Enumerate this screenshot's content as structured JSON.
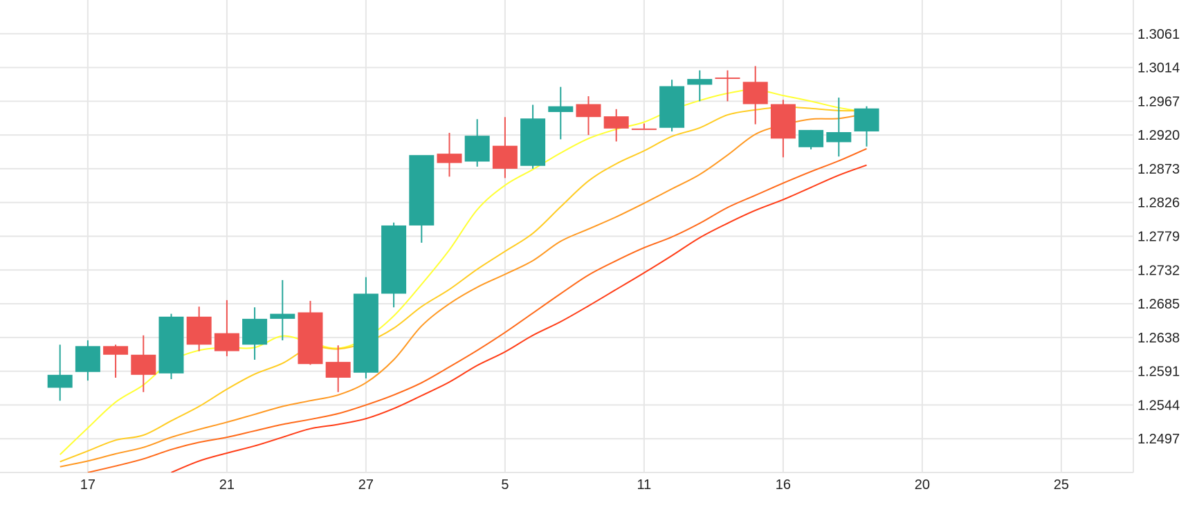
{
  "chart_data": {
    "type": "candlestick",
    "title": "",
    "xlabel": "",
    "ylabel": "",
    "grid": true,
    "ylim": [
      1.245,
      1.3108
    ],
    "colors": {
      "up": "#26a69a",
      "down": "#ef5350",
      "grid": "#e6e6e6",
      "ma": [
        "#ffff33",
        "#ffcc22",
        "#ff9922",
        "#ff6a1a",
        "#ff3d17"
      ]
    },
    "x_ticks": [
      {
        "label": "17",
        "x": 2
      },
      {
        "label": "21",
        "x": 7
      },
      {
        "label": "27",
        "x": 12
      },
      {
        "label": "5",
        "x": 17
      },
      {
        "label": "11",
        "x": 22
      },
      {
        "label": "16",
        "x": 27
      },
      {
        "label": "20",
        "x": 32
      },
      {
        "label": "25",
        "x": 37
      }
    ],
    "y_ticks": [
      "1.2497",
      "1.2544",
      "1.2591",
      "1.2638",
      "1.2685",
      "1.2732",
      "1.2779",
      "1.2826",
      "1.2873",
      "1.2920",
      "1.2967",
      "1.3014",
      "1.3061"
    ],
    "candles": [
      {
        "x": 1,
        "o": 1.2568,
        "h": 1.2628,
        "l": 1.255,
        "c": 1.2586
      },
      {
        "x": 2,
        "o": 1.259,
        "h": 1.2634,
        "l": 1.2578,
        "c": 1.2626
      },
      {
        "x": 3,
        "o": 1.2626,
        "h": 1.2628,
        "l": 1.2582,
        "c": 1.2614
      },
      {
        "x": 4,
        "o": 1.2614,
        "h": 1.2641,
        "l": 1.2562,
        "c": 1.2586
      },
      {
        "x": 5,
        "o": 1.2588,
        "h": 1.2671,
        "l": 1.258,
        "c": 1.2667
      },
      {
        "x": 6,
        "o": 1.2667,
        "h": 1.2681,
        "l": 1.2619,
        "c": 1.2628
      },
      {
        "x": 7,
        "o": 1.2644,
        "h": 1.269,
        "l": 1.2612,
        "c": 1.2619
      },
      {
        "x": 8,
        "o": 1.2628,
        "h": 1.268,
        "l": 1.2607,
        "c": 1.2664
      },
      {
        "x": 9,
        "o": 1.2664,
        "h": 1.2718,
        "l": 1.2634,
        "c": 1.2671
      },
      {
        "x": 10,
        "o": 1.2673,
        "h": 1.2689,
        "l": 1.26,
        "c": 1.2601
      },
      {
        "x": 11,
        "o": 1.2604,
        "h": 1.2627,
        "l": 1.2562,
        "c": 1.2582
      },
      {
        "x": 12,
        "o": 1.2589,
        "h": 1.2722,
        "l": 1.2581,
        "c": 1.2699
      },
      {
        "x": 13,
        "o": 1.2699,
        "h": 1.2798,
        "l": 1.268,
        "c": 1.2794
      },
      {
        "x": 14,
        "o": 1.2794,
        "h": 1.2888,
        "l": 1.277,
        "c": 1.2892
      },
      {
        "x": 15,
        "o": 1.2894,
        "h": 1.2923,
        "l": 1.2862,
        "c": 1.2881
      },
      {
        "x": 16,
        "o": 1.2883,
        "h": 1.2942,
        "l": 1.2876,
        "c": 1.2919
      },
      {
        "x": 17,
        "o": 1.2905,
        "h": 1.2945,
        "l": 1.286,
        "c": 1.2873
      },
      {
        "x": 18,
        "o": 1.2877,
        "h": 1.2962,
        "l": 1.2873,
        "c": 1.2943
      },
      {
        "x": 19,
        "o": 1.2952,
        "h": 1.2987,
        "l": 1.2914,
        "c": 1.296
      },
      {
        "x": 20,
        "o": 1.2963,
        "h": 1.2974,
        "l": 1.292,
        "c": 1.2945
      },
      {
        "x": 21,
        "o": 1.2946,
        "h": 1.2956,
        "l": 1.2911,
        "c": 1.2929
      },
      {
        "x": 22,
        "o": 1.2929,
        "h": 1.2936,
        "l": 1.2929,
        "c": 1.2928
      },
      {
        "x": 23,
        "o": 1.293,
        "h": 1.2997,
        "l": 1.2925,
        "c": 1.2988
      },
      {
        "x": 24,
        "o": 1.299,
        "h": 1.301,
        "l": 1.2967,
        "c": 1.2998
      },
      {
        "x": 25,
        "o": 1.3,
        "h": 1.301,
        "l": 1.2967,
        "c": 1.2999
      },
      {
        "x": 26,
        "o": 1.2994,
        "h": 1.3016,
        "l": 1.2935,
        "c": 1.2963
      },
      {
        "x": 27,
        "o": 1.2963,
        "h": 1.2969,
        "l": 1.2889,
        "c": 1.2915
      },
      {
        "x": 28,
        "o": 1.2903,
        "h": 1.2927,
        "l": 1.29,
        "c": 1.2927
      },
      {
        "x": 29,
        "o": 1.291,
        "h": 1.2972,
        "l": 1.289,
        "c": 1.2924
      },
      {
        "x": 30,
        "o": 1.2925,
        "h": 1.296,
        "l": 1.2904,
        "c": 1.2957
      }
    ],
    "series": [
      {
        "x": [
          1,
          2,
          3,
          4,
          5,
          6,
          7,
          8,
          9,
          10,
          11,
          12,
          13,
          14,
          15,
          16,
          17,
          18,
          19,
          20,
          21,
          22,
          23,
          24,
          25,
          26,
          27,
          28,
          29,
          30
        ],
        "values": [
          1.2475,
          1.2512,
          1.2548,
          1.2572,
          1.2605,
          1.262,
          1.2624,
          1.2624,
          1.264,
          1.2631,
          1.2623,
          1.2637,
          1.2668,
          1.2712,
          1.276,
          1.2816,
          1.285,
          1.2872,
          1.2895,
          1.2915,
          1.2928,
          1.2938,
          1.2955,
          1.2968,
          1.2978,
          1.2983,
          1.2975,
          1.2967,
          1.2958,
          1.2952
        ]
      },
      {
        "x": [
          1,
          2,
          3,
          4,
          5,
          6,
          7,
          8,
          9,
          10,
          11,
          12,
          13,
          14,
          15,
          16,
          17,
          18,
          19,
          20,
          21,
          22,
          23,
          24,
          25,
          26,
          27,
          28,
          29,
          30
        ],
        "values": [
          1.2465,
          1.248,
          1.2495,
          1.2502,
          1.2522,
          1.2542,
          1.2566,
          1.2587,
          1.2602,
          1.2624,
          1.2622,
          1.2631,
          1.2651,
          1.2681,
          1.2705,
          1.2733,
          1.2758,
          1.2783,
          1.282,
          1.2856,
          1.288,
          1.2898,
          1.2918,
          1.293,
          1.2948,
          1.2955,
          1.2959,
          1.2957,
          1.2954,
          1.2954
        ]
      },
      {
        "x": [
          1,
          2,
          3,
          4,
          5,
          6,
          7,
          8,
          9,
          10,
          11,
          12,
          13,
          14,
          15,
          16,
          17,
          18,
          19,
          20,
          21,
          22,
          23,
          24,
          25,
          26,
          27,
          28,
          29,
          30
        ],
        "values": [
          1.2458,
          1.2466,
          1.2476,
          1.2485,
          1.2499,
          1.251,
          1.252,
          1.2531,
          1.2542,
          1.255,
          1.2558,
          1.2575,
          1.2607,
          1.2654,
          1.2685,
          1.2708,
          1.2726,
          1.2745,
          1.2772,
          1.2789,
          1.2806,
          1.2825,
          1.2845,
          1.2865,
          1.2892,
          1.2921,
          1.2934,
          1.2942,
          1.2943,
          1.295
        ]
      },
      {
        "x": [
          2,
          3,
          4,
          5,
          6,
          7,
          8,
          9,
          10,
          11,
          12,
          13,
          14,
          15,
          16,
          17,
          18,
          19,
          20,
          21,
          22,
          23,
          24,
          25,
          26,
          27,
          28,
          29,
          30
        ],
        "values": [
          1.245,
          1.2459,
          1.2469,
          1.2482,
          1.2492,
          1.2499,
          1.2508,
          1.2517,
          1.2524,
          1.2532,
          1.2544,
          1.2558,
          1.2575,
          1.2597,
          1.262,
          1.2645,
          1.2672,
          1.2699,
          1.2725,
          1.2745,
          1.2763,
          1.2778,
          1.2797,
          1.2819,
          1.2836,
          1.2853,
          1.2869,
          1.2884,
          1.2901
        ]
      },
      {
        "x": [
          5,
          6,
          7,
          8,
          9,
          10,
          11,
          12,
          13,
          14,
          15,
          16,
          17,
          18,
          19,
          20,
          21,
          22,
          23,
          24,
          25,
          26,
          27,
          28,
          29,
          30
        ],
        "values": [
          1.245,
          1.2466,
          1.2477,
          1.2487,
          1.2499,
          1.2511,
          1.2517,
          1.2525,
          1.2539,
          1.2557,
          1.2576,
          1.2599,
          1.2618,
          1.2641,
          1.266,
          1.2682,
          1.2705,
          1.2728,
          1.2752,
          1.2777,
          1.2797,
          1.2815,
          1.283,
          1.2847,
          1.2864,
          1.2878
        ]
      }
    ]
  }
}
